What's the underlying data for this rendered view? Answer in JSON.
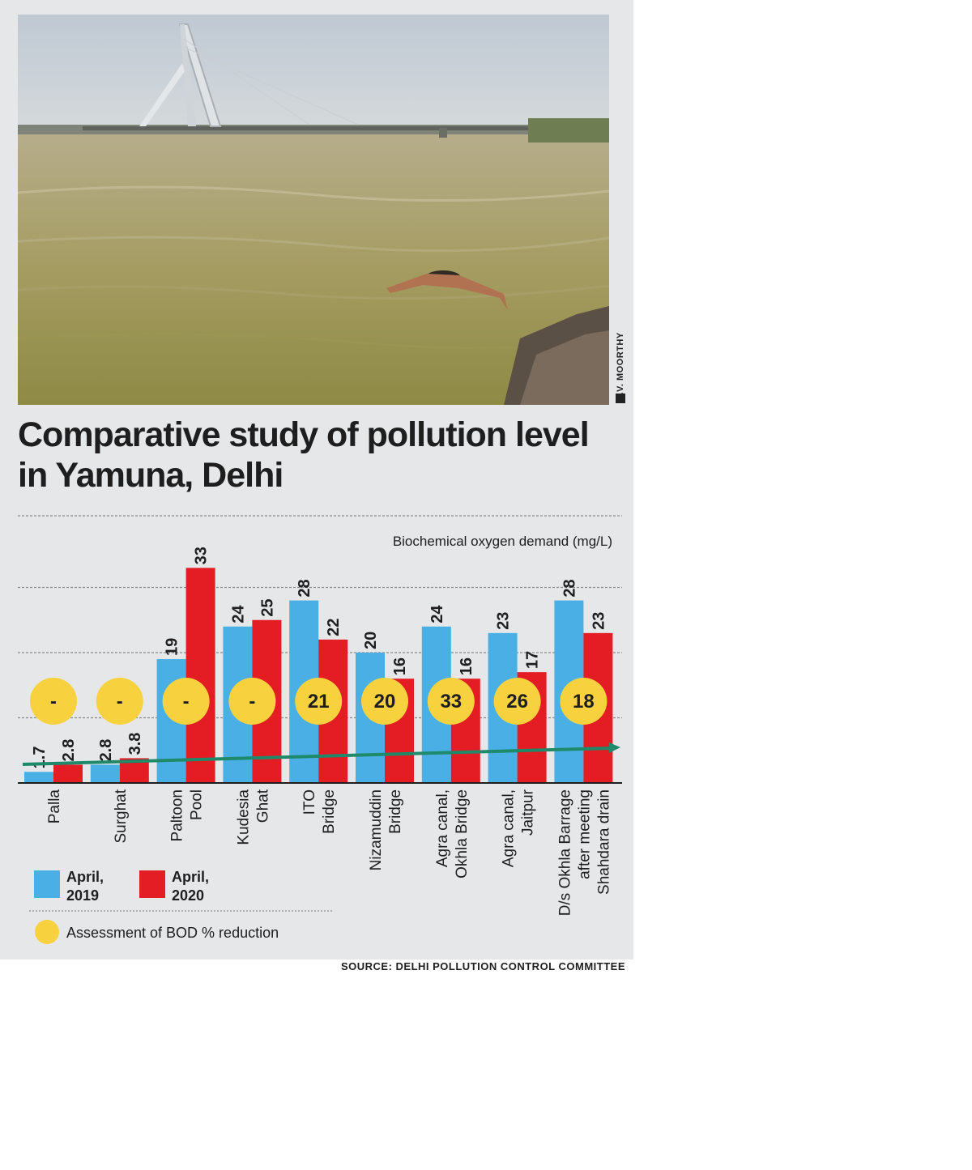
{
  "photo": {
    "credit": "R.V. MOORTHY"
  },
  "title": "Comparative study of pollution level in Yamuna, Delhi",
  "source": "SOURCE: DELHI POLLUTION CONTROL COMMITTEE",
  "colors": {
    "april_2019": "#4aafe4",
    "april_2020": "#e41c24",
    "assessment": "#f7d23e",
    "trend": "#1f8a6a"
  },
  "chart_data": {
    "type": "bar",
    "ylabel": "Biochemical oxygen demand (mg/L)",
    "categories": [
      "Palla",
      "Surghat",
      "Paltoon Pool",
      "Kudesia Ghat",
      "ITO Bridge",
      "Nizamuddin Bridge",
      "Agra canal, Okhla Bridge",
      "Agra canal, Jaitpur",
      "D/s Okhla Barrage after meeting Shahdara drain"
    ],
    "category_lines": [
      [
        "Palla"
      ],
      [
        "Surghat"
      ],
      [
        "Paltoon",
        "Pool"
      ],
      [
        "Kudesia",
        "Ghat"
      ],
      [
        "ITO",
        "Bridge"
      ],
      [
        "Nizamuddin",
        "Bridge"
      ],
      [
        "Agra canal,",
        "Okhla Bridge"
      ],
      [
        "Agra canal,",
        "Jaitpur"
      ],
      [
        "D/s Okhla Barrage",
        "after meeting",
        "Shahdara drain"
      ]
    ],
    "series": [
      {
        "name": "April, 2019",
        "name_lines": [
          "April,",
          "2019"
        ],
        "values": [
          1.7,
          2.8,
          19,
          24,
          28,
          20,
          24,
          23,
          28
        ],
        "labels": [
          "1.7",
          "2.8",
          "19",
          "24",
          "28",
          "20",
          "24",
          "23",
          "28"
        ]
      },
      {
        "name": "April, 2020",
        "name_lines": [
          "April,",
          "2020"
        ],
        "values": [
          2.8,
          3.8,
          33,
          25,
          22,
          16,
          16,
          17,
          23
        ],
        "labels": [
          "2.8",
          "3.8",
          "33",
          "25",
          "22",
          "16",
          "16",
          "17",
          "23"
        ]
      }
    ],
    "assessment": {
      "name": "Assessment of BOD % reduction",
      "values": [
        "-",
        "-",
        "-",
        "-",
        "21",
        "20",
        "33",
        "26",
        "18"
      ]
    },
    "ylim": [
      0,
      35
    ],
    "grid": true,
    "legend": "bottom-left"
  }
}
